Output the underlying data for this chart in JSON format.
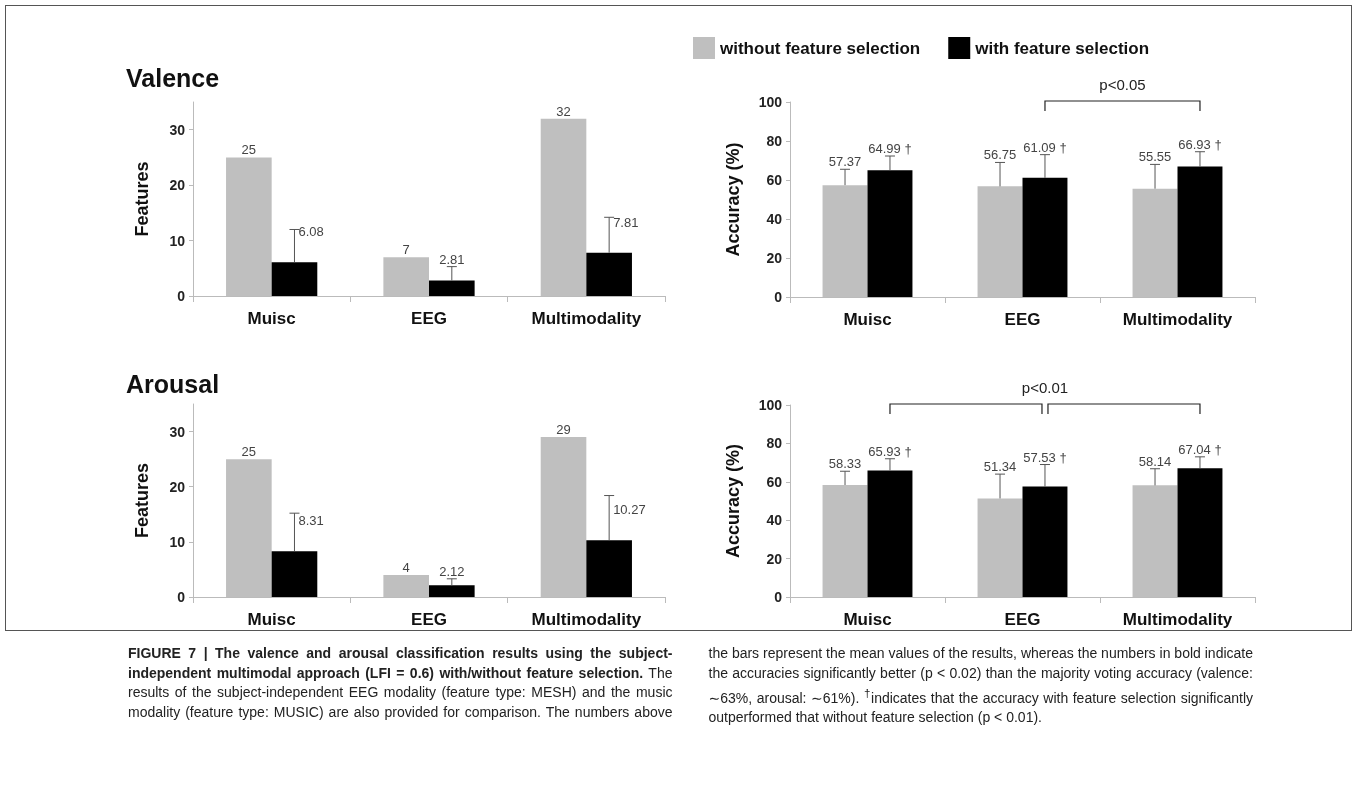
{
  "chart_data": [
    {
      "type": "bar",
      "title": "Valence",
      "ylabel": "Features",
      "categories": [
        "Muisc",
        "EEG",
        "Multimodality"
      ],
      "ylim": [
        0,
        35
      ],
      "yticks": [
        0,
        10,
        20,
        30
      ],
      "grid": false,
      "legend": false,
      "data_labels": true,
      "series": [
        {
          "color": "#bfbfbf",
          "values": [
            25,
            7,
            32
          ]
        },
        {
          "color": "#000000",
          "values": [
            6.08,
            2.81,
            7.81
          ],
          "errors": [
            [
              6.08,
              12
            ],
            [
              2.81,
              5.3
            ],
            [
              7.81,
              14.2
            ]
          ]
        }
      ],
      "annotations": [
        "FIGURE 7 | The valence and arousal classification results using the subject-independent multimodal approach (LFI = 0.6) with/without feature selection.",
        "The results of the subject-independent EEG modality (feature type: MESH) and the music modality (feature type: MUSIC) are also provided for comparison. The numbers above the bars represent the mean values of the results, whereas the numbers in bold indicate the accuracies significantly better (p < 0.02) than the majority voting accuracy (valence: ∼63%, arousal: ∼61%). $^{†}$indicates that the accuracy with feature selection significantly outperformed that without feature selection (p < 0.01)."
      ]
    },
    {
      "type": "bar",
      "ylabel": "Accuracy (%)",
      "categories": [
        "Muisc",
        "EEG",
        "Multimodality"
      ],
      "ylim": [
        0,
        100
      ],
      "yticks": [
        0,
        20,
        40,
        60,
        80,
        100
      ],
      "grid": false,
      "legend": "top",
      "series": [
        {
          "name": "without feature selection",
          "color": "#bfbfbf",
          "values": [
            57.37,
            56.75,
            55.55
          ],
          "errors": [
            [
              57.37,
              65.5
            ],
            [
              56.75,
              69
            ],
            [
              55.55,
              68
            ]
          ],
          "value_labels": [
            "57.37",
            "56.75",
            "55.55"
          ]
        },
        {
          "name": "with feature selection",
          "color": "#000000",
          "values": [
            64.99,
            61.09,
            66.93
          ],
          "errors": [
            [
              64.99,
              72.3
            ],
            [
              61.09,
              73
            ],
            [
              66.93,
              74.5
            ]
          ],
          "value_labels": [
            "64.99 †",
            "61.09 †",
            "66.93 †"
          ]
        }
      ],
      "annotations": [
        "p<0.05"
      ]
    },
    {
      "type": "bar",
      "title": "Arousal",
      "ylabel": "Features",
      "categories": [
        "Muisc",
        "EEG",
        "Multimodality"
      ],
      "ylim": [
        0,
        35
      ],
      "yticks": [
        0,
        10,
        20,
        30
      ],
      "grid": false,
      "legend": false,
      "data_labels": true,
      "series": [
        {
          "color": "#bfbfbf",
          "values": [
            25,
            4,
            29
          ]
        },
        {
          "color": "#000000",
          "values": [
            8.31,
            2.12,
            10.27
          ],
          "errors": [
            [
              8.31,
              15.2
            ],
            [
              2.12,
              3.3
            ],
            [
              10.27,
              18.4
            ]
          ],
          "value_labels": [
            "8.31",
            "2.12",
            "10.27"
          ]
        }
      ]
    },
    {
      "type": "bar",
      "ylabel": "Accuracy (%)",
      "categories": [
        "Muisc",
        "EEG",
        "Multimodality"
      ],
      "ylim": [
        0,
        100
      ],
      "yticks": [
        0,
        20,
        40,
        60,
        80,
        100
      ],
      "grid": false,
      "legend": false,
      "series": [
        {
          "color": "#bfbfbf",
          "values": [
            58.33,
            51.34,
            58.14
          ],
          "errors": [
            [
              58.33,
              65.5
            ],
            [
              51.34,
              64
            ],
            [
              58.14,
              66.8
            ]
          ],
          "value_labels": [
            "58.33",
            "51.34",
            "58.14"
          ]
        },
        {
          "color": "#000000",
          "values": [
            65.93,
            57.53,
            67.04
          ],
          "errors": [
            [
              65.93,
              72
            ],
            [
              57.53,
              69
            ],
            [
              67.04,
              73
            ]
          ],
          "value_labels": [
            "65.93 †",
            "57.53 †",
            "67.04 †"
          ]
        }
      ],
      "annotations": [
        "p<0.01"
      ]
    }
  ]
}
